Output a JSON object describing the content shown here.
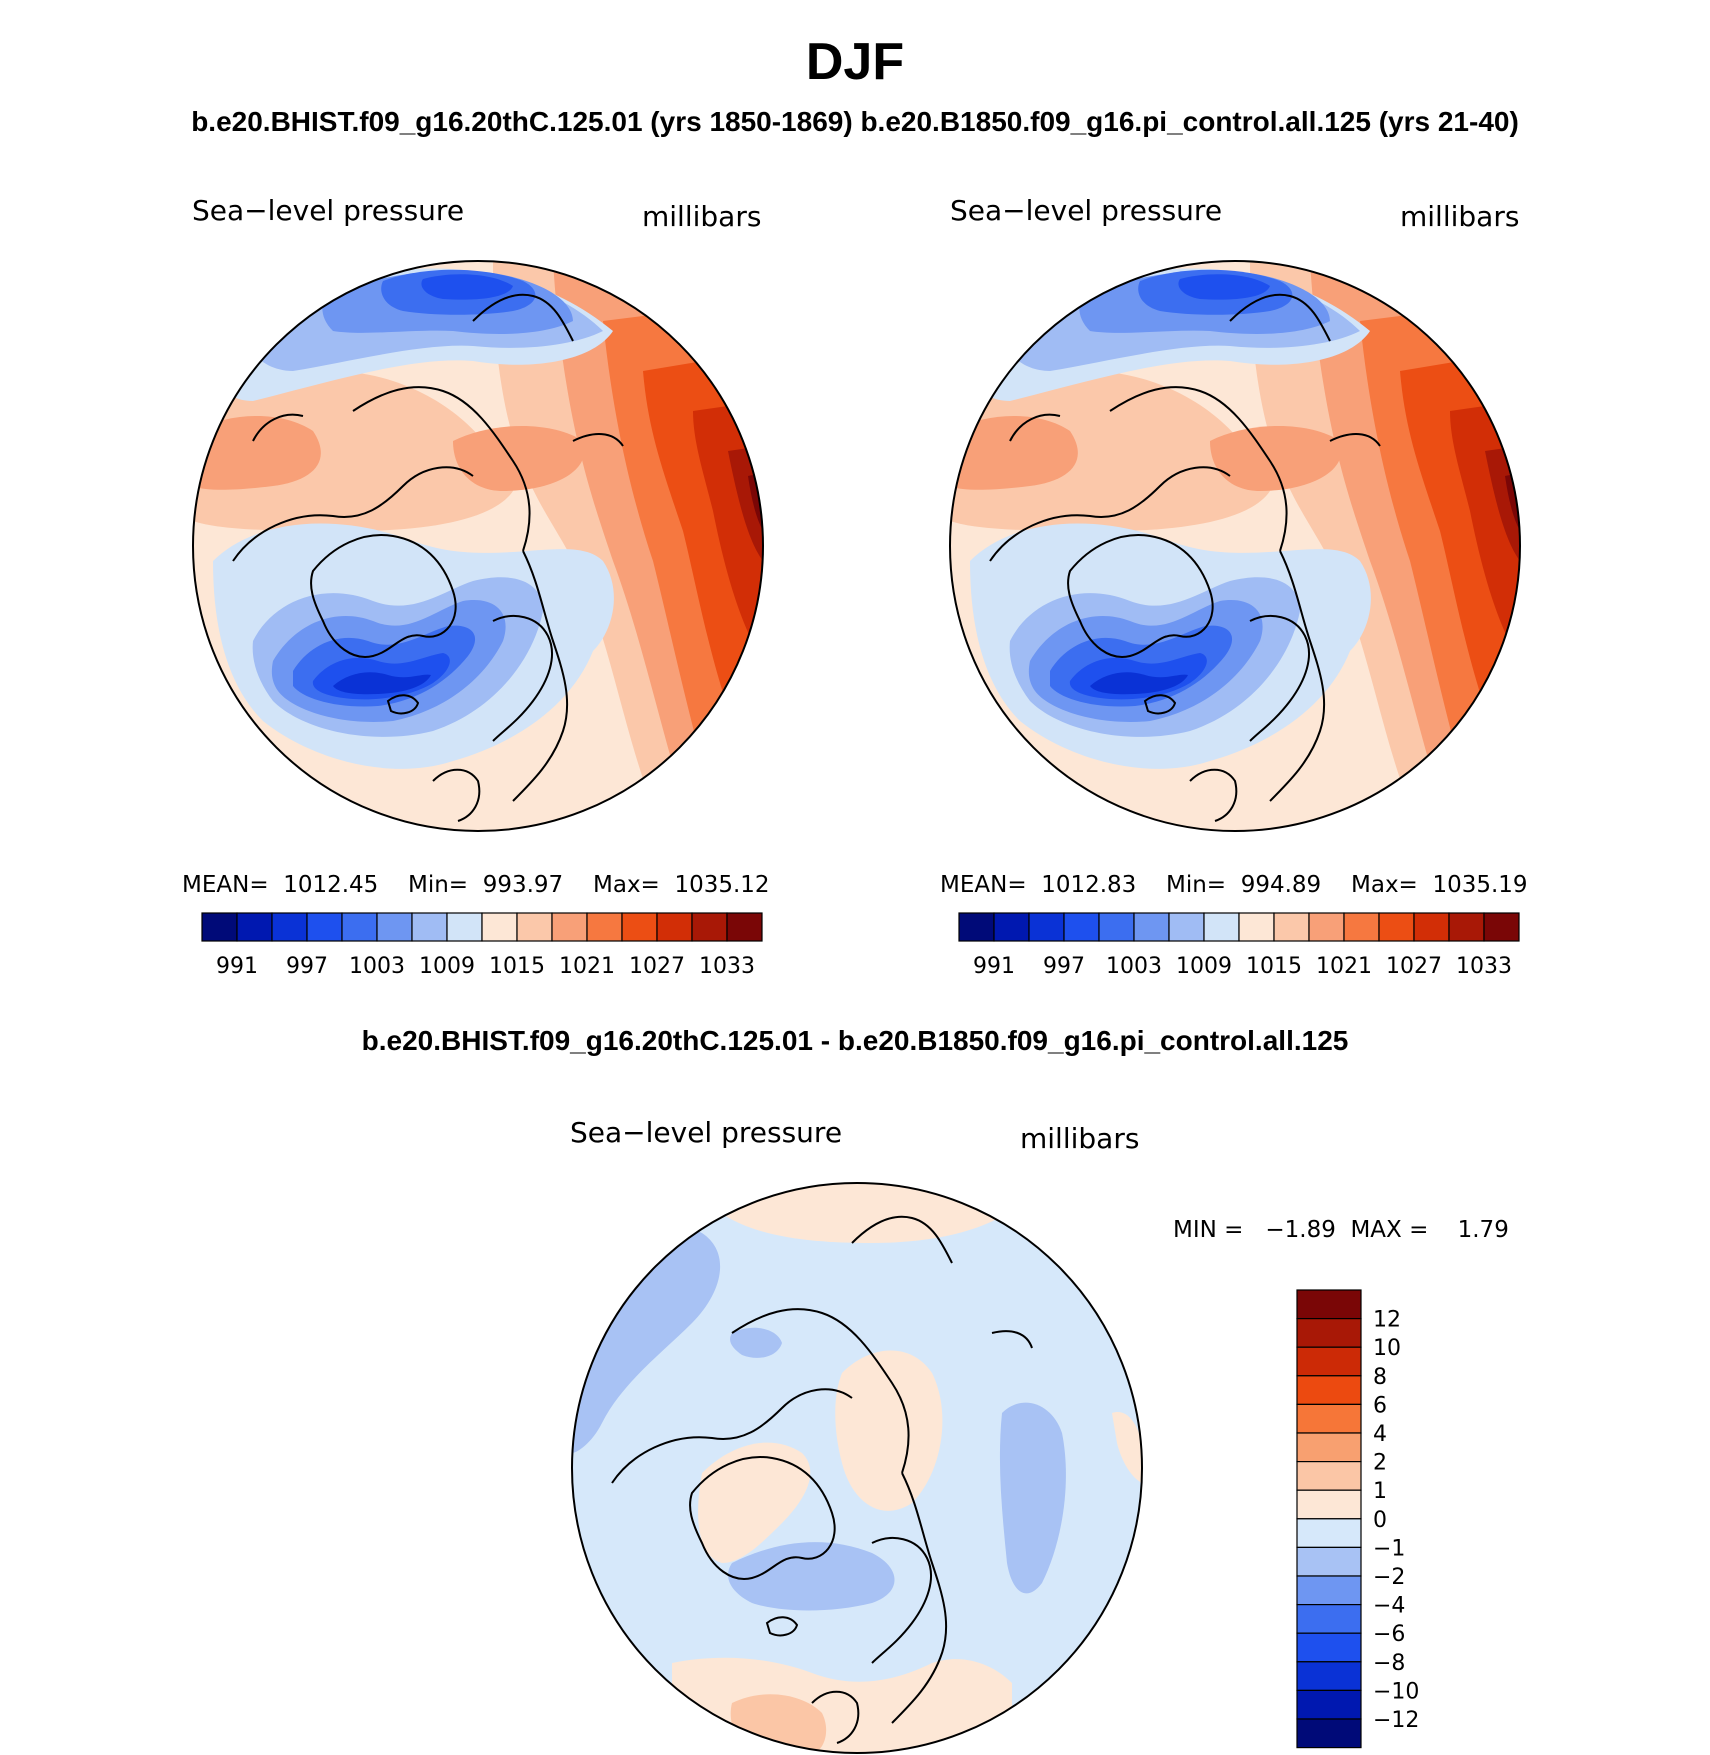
{
  "title": "DJF",
  "subtitle": "b.e20.BHIST.f09_g16.20thC.125.01 (yrs 1850-1869)  b.e20.B1850.f09_g16.pi_control.all.125 (yrs 21-40)",
  "diff_title": "b.e20.BHIST.f09_g16.20thC.125.01 - b.e20.B1850.f09_g16.pi_control.all.125",
  "colors": {
    "abs_palette": [
      "#000a78",
      "#0018b0",
      "#0a32d6",
      "#1e50ee",
      "#3c6ef0",
      "#6e96f2",
      "#a0bcf4",
      "#d2e4f8",
      "#fde7d6",
      "#fbc8aa",
      "#f8a078",
      "#f67840",
      "#ec4e14",
      "#d22e06",
      "#a81806",
      "#7a0606"
    ],
    "diff_palette": [
      "#000a78",
      "#0018b0",
      "#0a32d6",
      "#1e50ee",
      "#3c6ef0",
      "#6e96f2",
      "#a8c2f4",
      "#d6e8fa",
      "#fde7d6",
      "#fbc6a6",
      "#f8a070",
      "#f67638",
      "#ec4a10",
      "#cc2a06",
      "#a81806",
      "#7a0606"
    ]
  },
  "panels": [
    {
      "label_left": "Sea−level pressure",
      "label_right": "millibars",
      "mean_text": "MEAN=  1012.45",
      "min_text": "Min=  993.97",
      "max_text": "Max=  1035.12",
      "colorbar_ticks": [
        "991",
        "997",
        "1003",
        "1009",
        "1015",
        "1021",
        "1027",
        "1033"
      ]
    },
    {
      "label_left": "Sea−level pressure",
      "label_right": "millibars",
      "mean_text": "MEAN=  1012.83",
      "min_text": "Min=  994.89",
      "max_text": "Max=  1035.19",
      "colorbar_ticks": [
        "991",
        "997",
        "1003",
        "1009",
        "1015",
        "1021",
        "1027",
        "1033"
      ]
    }
  ],
  "diff_panel": {
    "label_left": "Sea−level pressure",
    "label_right": "millibars",
    "minmax_text": "MIN =   −1.89  MAX =    1.79",
    "colorbar_ticks": [
      "12",
      "10",
      "8",
      "6",
      "4",
      "2",
      "1",
      "0",
      "−1",
      "−2",
      "−4",
      "−6",
      "−8",
      "−10",
      "−12"
    ]
  }
}
